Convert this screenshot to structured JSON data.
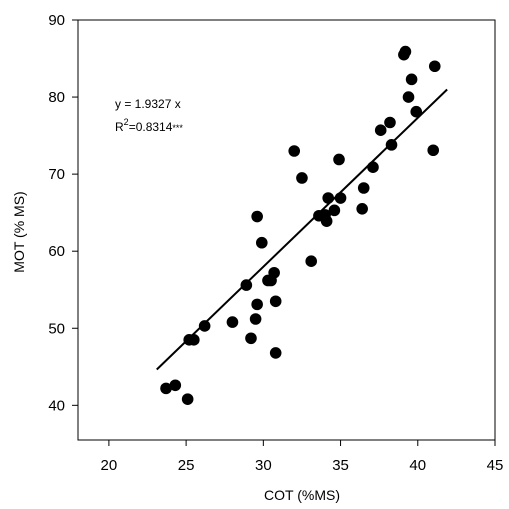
{
  "chart_data": {
    "type": "scatter",
    "xlabel": "COT (%MS)",
    "ylabel": "MOT (% MS)",
    "xlim": [
      18,
      45
    ],
    "ylim": [
      35.5,
      90
    ],
    "xticks": [
      20,
      25,
      30,
      35,
      40,
      45
    ],
    "yticks": [
      40,
      50,
      60,
      70,
      80,
      90
    ],
    "grid": false,
    "points": [
      [
        23.7,
        42.2
      ],
      [
        24.3,
        42.6
      ],
      [
        25.1,
        40.8
      ],
      [
        25.2,
        48.5
      ],
      [
        25.5,
        48.5
      ],
      [
        26.2,
        50.3
      ],
      [
        28.0,
        50.8
      ],
      [
        28.9,
        55.6
      ],
      [
        29.2,
        48.7
      ],
      [
        29.5,
        51.2
      ],
      [
        29.6,
        53.1
      ],
      [
        29.6,
        64.5
      ],
      [
        29.9,
        61.1
      ],
      [
        30.3,
        56.2
      ],
      [
        30.5,
        56.2
      ],
      [
        30.7,
        57.2
      ],
      [
        30.8,
        53.5
      ],
      [
        30.8,
        46.8
      ],
      [
        32.0,
        73.0
      ],
      [
        32.5,
        69.5
      ],
      [
        33.1,
        58.7
      ],
      [
        33.6,
        64.6
      ],
      [
        34.0,
        64.7
      ],
      [
        34.1,
        63.9
      ],
      [
        34.2,
        66.9
      ],
      [
        34.6,
        65.3
      ],
      [
        34.9,
        71.9
      ],
      [
        35.0,
        66.9
      ],
      [
        36.4,
        65.5
      ],
      [
        36.5,
        68.2
      ],
      [
        37.1,
        70.9
      ],
      [
        37.6,
        75.7
      ],
      [
        38.2,
        76.7
      ],
      [
        38.3,
        73.8
      ],
      [
        39.1,
        85.5
      ],
      [
        39.2,
        85.9
      ],
      [
        39.4,
        80.0
      ],
      [
        39.6,
        82.3
      ],
      [
        39.9,
        78.1
      ],
      [
        41.0,
        73.1
      ],
      [
        41.1,
        84.0
      ]
    ],
    "trendline": {
      "x1": 23.1,
      "x2": 41.9,
      "slope": 1.9327
    },
    "annotations": {
      "equation": "y = 1.9327 x",
      "r_prefix": "R",
      "r_sup": "2",
      "r_value": "=0.8314",
      "r_stars": "***"
    }
  }
}
